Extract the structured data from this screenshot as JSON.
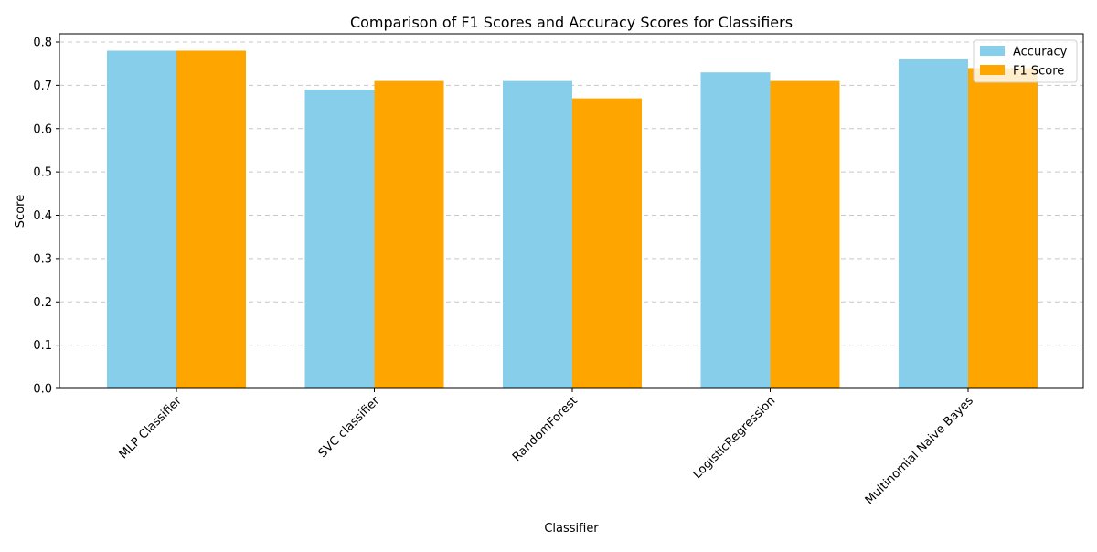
{
  "chart_data": {
    "type": "bar",
    "title": "Comparison of F1 Scores and Accuracy Scores for Classifiers",
    "xlabel": "Classifier",
    "ylabel": "Score",
    "categories": [
      "MLP Classifier",
      "SVC classifier",
      "RandomForest",
      "LogisticRegression",
      "Multinomial Naive Bayes"
    ],
    "series": [
      {
        "name": "Accuracy",
        "color": "#87ceeb",
        "values": [
          0.78,
          0.69,
          0.71,
          0.73,
          0.76
        ]
      },
      {
        "name": "F1 Score",
        "color": "#ffa500",
        "values": [
          0.78,
          0.71,
          0.67,
          0.71,
          0.74
        ]
      }
    ],
    "ylim": [
      0,
      0.8
    ],
    "yticks": [
      "0.0",
      "0.1",
      "0.2",
      "0.3",
      "0.4",
      "0.5",
      "0.6",
      "0.7",
      "0.8"
    ],
    "grid": "y-dashed",
    "legend": "upper-right"
  }
}
